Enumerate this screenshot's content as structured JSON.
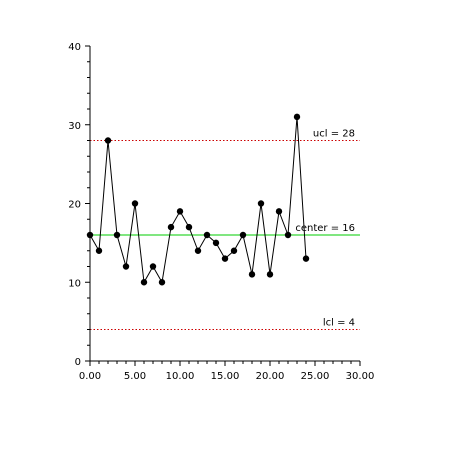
{
  "chart_data": {
    "type": "line",
    "title": "",
    "xlabel": "",
    "ylabel": "",
    "xlim": [
      0,
      30
    ],
    "ylim": [
      0,
      40
    ],
    "x_ticks": [
      0,
      5,
      10,
      15,
      20,
      25,
      30
    ],
    "x_tick_labels": [
      "0.00",
      "5.00",
      "10.00",
      "15.00",
      "20.00",
      "25.00",
      "30.00"
    ],
    "y_ticks": [
      0,
      10,
      20,
      30,
      40
    ],
    "y_tick_labels": [
      "0",
      "10",
      "20",
      "30",
      "40"
    ],
    "grid": false,
    "series": [
      {
        "x": [
          0,
          1,
          2,
          3,
          4,
          5,
          6,
          7,
          8,
          9,
          10,
          11,
          12,
          13,
          14,
          15,
          16,
          17,
          18,
          19,
          20,
          21,
          22,
          23,
          24
        ],
        "y": [
          16,
          14,
          28,
          16,
          12,
          20,
          10,
          12,
          10,
          17,
          19,
          17,
          14,
          16,
          15,
          13,
          14,
          16,
          11,
          20,
          11,
          19,
          16,
          31,
          13
        ],
        "color": "#000000"
      }
    ],
    "reference_lines": [
      {
        "label": "ucl = 28",
        "value": 28,
        "color": "#cc0000",
        "style": "dotted"
      },
      {
        "label": "center = 16",
        "value": 16,
        "color": "#00cc00",
        "style": "solid"
      },
      {
        "label": "lcl = 4",
        "value": 4,
        "color": "#cc0000",
        "style": "dotted"
      }
    ]
  }
}
